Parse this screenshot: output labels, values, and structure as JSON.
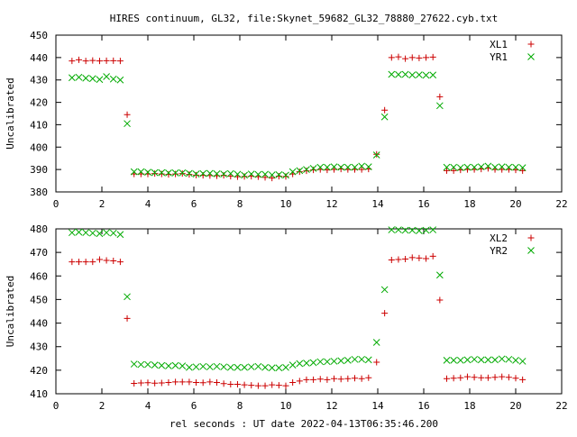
{
  "chart_data": {
    "title": "HIRES continuum, GL32, file:Skynet_59682_GL32_78880_27622.cyb.txt",
    "xlabel": "rel seconds : UT date 2022-04-13T06:35:46.200",
    "panels": [
      {
        "type": "scatter",
        "ylabel": "Uncalibrated",
        "xlim": [
          0,
          22
        ],
        "ylim": [
          380,
          450
        ],
        "xticks": [
          "0",
          "2",
          "4",
          "6",
          "8",
          "10",
          "12",
          "14",
          "16",
          "18",
          "20",
          "22"
        ],
        "yticks": [
          "380",
          "390",
          "400",
          "410",
          "420",
          "430",
          "440",
          "450"
        ],
        "legend_placement": "top-right",
        "series": [
          {
            "name": "XL1",
            "color": "#cc0000",
            "marker": "plus",
            "x": [
              0.7,
              1.0,
              1.3,
              1.6,
              1.9,
              2.2,
              2.5,
              2.8,
              3.1,
              3.4,
              3.7,
              4.0,
              4.3,
              4.6,
              4.9,
              5.2,
              5.5,
              5.8,
              6.1,
              6.4,
              6.7,
              7.0,
              7.3,
              7.6,
              7.9,
              8.2,
              8.5,
              8.8,
              9.1,
              9.4,
              9.7,
              10.0,
              10.3,
              10.6,
              10.9,
              11.2,
              11.5,
              11.8,
              12.1,
              12.4,
              12.7,
              13.0,
              13.3,
              13.6,
              13.95,
              14.3,
              14.6,
              14.9,
              15.2,
              15.5,
              15.8,
              16.1,
              16.4,
              16.7,
              17.0,
              17.3,
              17.6,
              17.9,
              18.2,
              18.5,
              18.8,
              19.1,
              19.4,
              19.7,
              20.0,
              20.3
            ],
            "y": [
              438.5,
              439,
              438.5,
              438.7,
              438.5,
              438.6,
              438.6,
              438.5,
              414.5,
              388,
              388,
              388,
              388.2,
              388,
              387.8,
              388,
              388.2,
              387.8,
              387.5,
              387.4,
              387.3,
              387.2,
              387.4,
              387,
              386.8,
              386.9,
              387,
              386.8,
              386.5,
              386.2,
              387,
              386.9,
              388,
              389,
              389.4,
              389.8,
              390,
              389.8,
              390,
              390.2,
              390,
              390,
              390,
              390.2,
              396.8,
              416.5,
              440,
              440.3,
              439.5,
              440,
              439.8,
              440,
              440.2,
              422.5,
              389.5,
              389.5,
              389.8,
              390,
              390,
              390.2,
              390.5,
              390,
              390,
              390,
              389.8,
              389.5
            ]
          },
          {
            "name": "YR1",
            "color": "#00aa00",
            "marker": "cross",
            "x": [
              0.7,
              1.0,
              1.3,
              1.6,
              1.9,
              2.2,
              2.5,
              2.8,
              3.1,
              3.4,
              3.7,
              4.0,
              4.3,
              4.6,
              4.9,
              5.2,
              5.5,
              5.8,
              6.1,
              6.4,
              6.7,
              7.0,
              7.3,
              7.6,
              7.9,
              8.2,
              8.5,
              8.8,
              9.1,
              9.4,
              9.7,
              10.0,
              10.3,
              10.6,
              10.9,
              11.2,
              11.5,
              11.8,
              12.1,
              12.4,
              12.7,
              13.0,
              13.3,
              13.6,
              13.95,
              14.3,
              14.6,
              14.9,
              15.2,
              15.5,
              15.8,
              16.1,
              16.4,
              16.7,
              17.0,
              17.3,
              17.6,
              17.9,
              18.2,
              18.5,
              18.8,
              19.1,
              19.4,
              19.7,
              20.0,
              20.3
            ],
            "y": [
              431,
              431.2,
              430.8,
              430.6,
              430.2,
              431.5,
              430.4,
              430,
              410.5,
              389,
              389,
              388.8,
              388.6,
              388.6,
              388.5,
              388.5,
              388.5,
              388.3,
              388,
              388.2,
              388.3,
              388.1,
              388,
              388.2,
              387.9,
              387.5,
              388,
              387.8,
              387.9,
              387.6,
              387.7,
              387.5,
              389,
              389.5,
              390,
              390.5,
              391,
              391,
              391.2,
              391,
              391,
              391,
              391.5,
              391.2,
              396.5,
              413.5,
              432.5,
              432.4,
              432.5,
              432.2,
              432.3,
              432.1,
              432.2,
              418.5,
              391,
              391,
              390.8,
              391,
              391,
              391.2,
              391.5,
              391,
              391.2,
              391,
              391,
              390.8
            ]
          }
        ]
      },
      {
        "type": "scatter",
        "ylabel": "Uncalibrated",
        "xlim": [
          0,
          22
        ],
        "ylim": [
          410,
          480
        ],
        "xticks": [
          "0",
          "2",
          "4",
          "6",
          "8",
          "10",
          "12",
          "14",
          "16",
          "18",
          "20",
          "22"
        ],
        "yticks": [
          "410",
          "420",
          "430",
          "440",
          "450",
          "460",
          "470",
          "480"
        ],
        "legend_placement": "top-right",
        "series": [
          {
            "name": "XL2",
            "color": "#cc0000",
            "marker": "plus",
            "x": [
              0.7,
              1.0,
              1.3,
              1.6,
              1.9,
              2.2,
              2.5,
              2.8,
              3.1,
              3.4,
              3.7,
              4.0,
              4.3,
              4.6,
              4.9,
              5.2,
              5.5,
              5.8,
              6.1,
              6.4,
              6.7,
              7.0,
              7.3,
              7.6,
              7.9,
              8.2,
              8.5,
              8.8,
              9.1,
              9.4,
              9.7,
              10.0,
              10.3,
              10.6,
              10.9,
              11.2,
              11.5,
              11.8,
              12.1,
              12.4,
              12.7,
              13.0,
              13.3,
              13.6,
              13.95,
              14.3,
              14.6,
              14.9,
              15.2,
              15.5,
              15.8,
              16.1,
              16.4,
              16.7,
              17.0,
              17.3,
              17.6,
              17.9,
              18.2,
              18.5,
              18.8,
              19.1,
              19.4,
              19.7,
              20.0,
              20.3
            ],
            "y": [
              466,
              466,
              466,
              466,
              467,
              466.6,
              466.4,
              466,
              442,
              414.4,
              414.6,
              414.7,
              414.5,
              414.6,
              414.8,
              415,
              415,
              415,
              414.8,
              414.7,
              415,
              414.8,
              414.3,
              414,
              414,
              413.8,
              413.6,
              413.4,
              413.4,
              413.8,
              413.6,
              413.4,
              414.8,
              415.4,
              416,
              416,
              416.2,
              416,
              416.4,
              416.2,
              416.4,
              416.6,
              416.4,
              416.8,
              423.4,
              444.2,
              466.8,
              467,
              467.2,
              467.8,
              467.6,
              467.4,
              468.4,
              449.8,
              416.4,
              416.6,
              416.8,
              417.2,
              417,
              416.8,
              416.8,
              417,
              417.2,
              417,
              416.6,
              416
            ]
          },
          {
            "name": "YR2",
            "color": "#00aa00",
            "marker": "cross",
            "x": [
              0.7,
              1.0,
              1.3,
              1.6,
              1.9,
              2.2,
              2.5,
              2.8,
              3.1,
              3.4,
              3.7,
              4.0,
              4.3,
              4.6,
              4.9,
              5.2,
              5.5,
              5.8,
              6.1,
              6.4,
              6.7,
              7.0,
              7.3,
              7.6,
              7.9,
              8.2,
              8.5,
              8.8,
              9.1,
              9.4,
              9.7,
              10.0,
              10.3,
              10.6,
              10.9,
              11.2,
              11.5,
              11.8,
              12.1,
              12.4,
              12.7,
              13.0,
              13.3,
              13.6,
              13.95,
              14.3,
              14.6,
              14.9,
              15.2,
              15.5,
              15.8,
              16.1,
              16.4,
              16.7,
              17.0,
              17.3,
              17.6,
              17.9,
              18.2,
              18.5,
              18.8,
              19.1,
              19.4,
              19.7,
              20.0,
              20.3
            ],
            "y": [
              478.4,
              478.6,
              478.4,
              478.2,
              478,
              478.4,
              478.2,
              477.6,
              451.2,
              422.6,
              422.4,
              422.4,
              422.2,
              422,
              421.8,
              422,
              421.8,
              421.2,
              421.4,
              421.6,
              421.4,
              421.6,
              421.4,
              421.2,
              421.2,
              421.2,
              421.4,
              421.6,
              421.2,
              421,
              421,
              421.2,
              422.2,
              422.8,
              423,
              423.2,
              423.6,
              423.6,
              423.8,
              424,
              424.2,
              424.6,
              424.6,
              424.4,
              431.8,
              454.2,
              479.6,
              479.6,
              479.4,
              479.4,
              479.2,
              479.4,
              479.6,
              460.4,
              424.2,
              424.2,
              424.2,
              424.4,
              424.6,
              424.4,
              424.4,
              424.4,
              424.8,
              424.6,
              424.2,
              423.8
            ]
          }
        ]
      }
    ]
  }
}
